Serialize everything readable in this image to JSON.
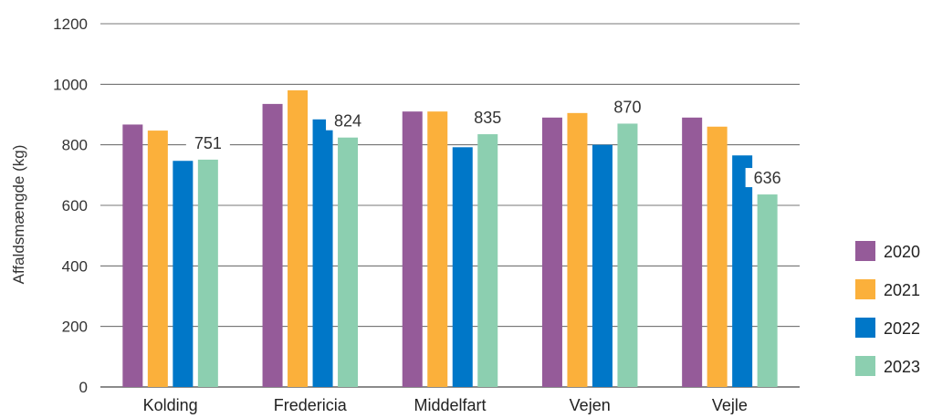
{
  "chart_data": {
    "type": "bar",
    "title": "",
    "xlabel": "",
    "ylabel": "Affaldsmængde (kg)",
    "ylim": [
      0,
      1200
    ],
    "yticks": [
      0,
      200,
      400,
      600,
      800,
      1000,
      1200
    ],
    "grid": true,
    "legend_position": "right",
    "categories": [
      "Kolding",
      "Fredericia",
      "Middelfart",
      "Vejen",
      "Vejle"
    ],
    "series": [
      {
        "name": "2020",
        "color": "#955b99",
        "values": [
          867,
          935,
          910,
          890,
          890
        ]
      },
      {
        "name": "2021",
        "color": "#fbb03b",
        "values": [
          847,
          980,
          910,
          905,
          860
        ]
      },
      {
        "name": "2022",
        "color": "#0077c8",
        "values": [
          747,
          884,
          792,
          800,
          765
        ]
      },
      {
        "name": "2023",
        "color": "#8ccfb0",
        "values": [
          751,
          824,
          835,
          870,
          636
        ]
      }
    ],
    "data_labels": {
      "series": "2023",
      "values": [
        "751",
        "824",
        "835",
        "870",
        "636"
      ]
    }
  }
}
